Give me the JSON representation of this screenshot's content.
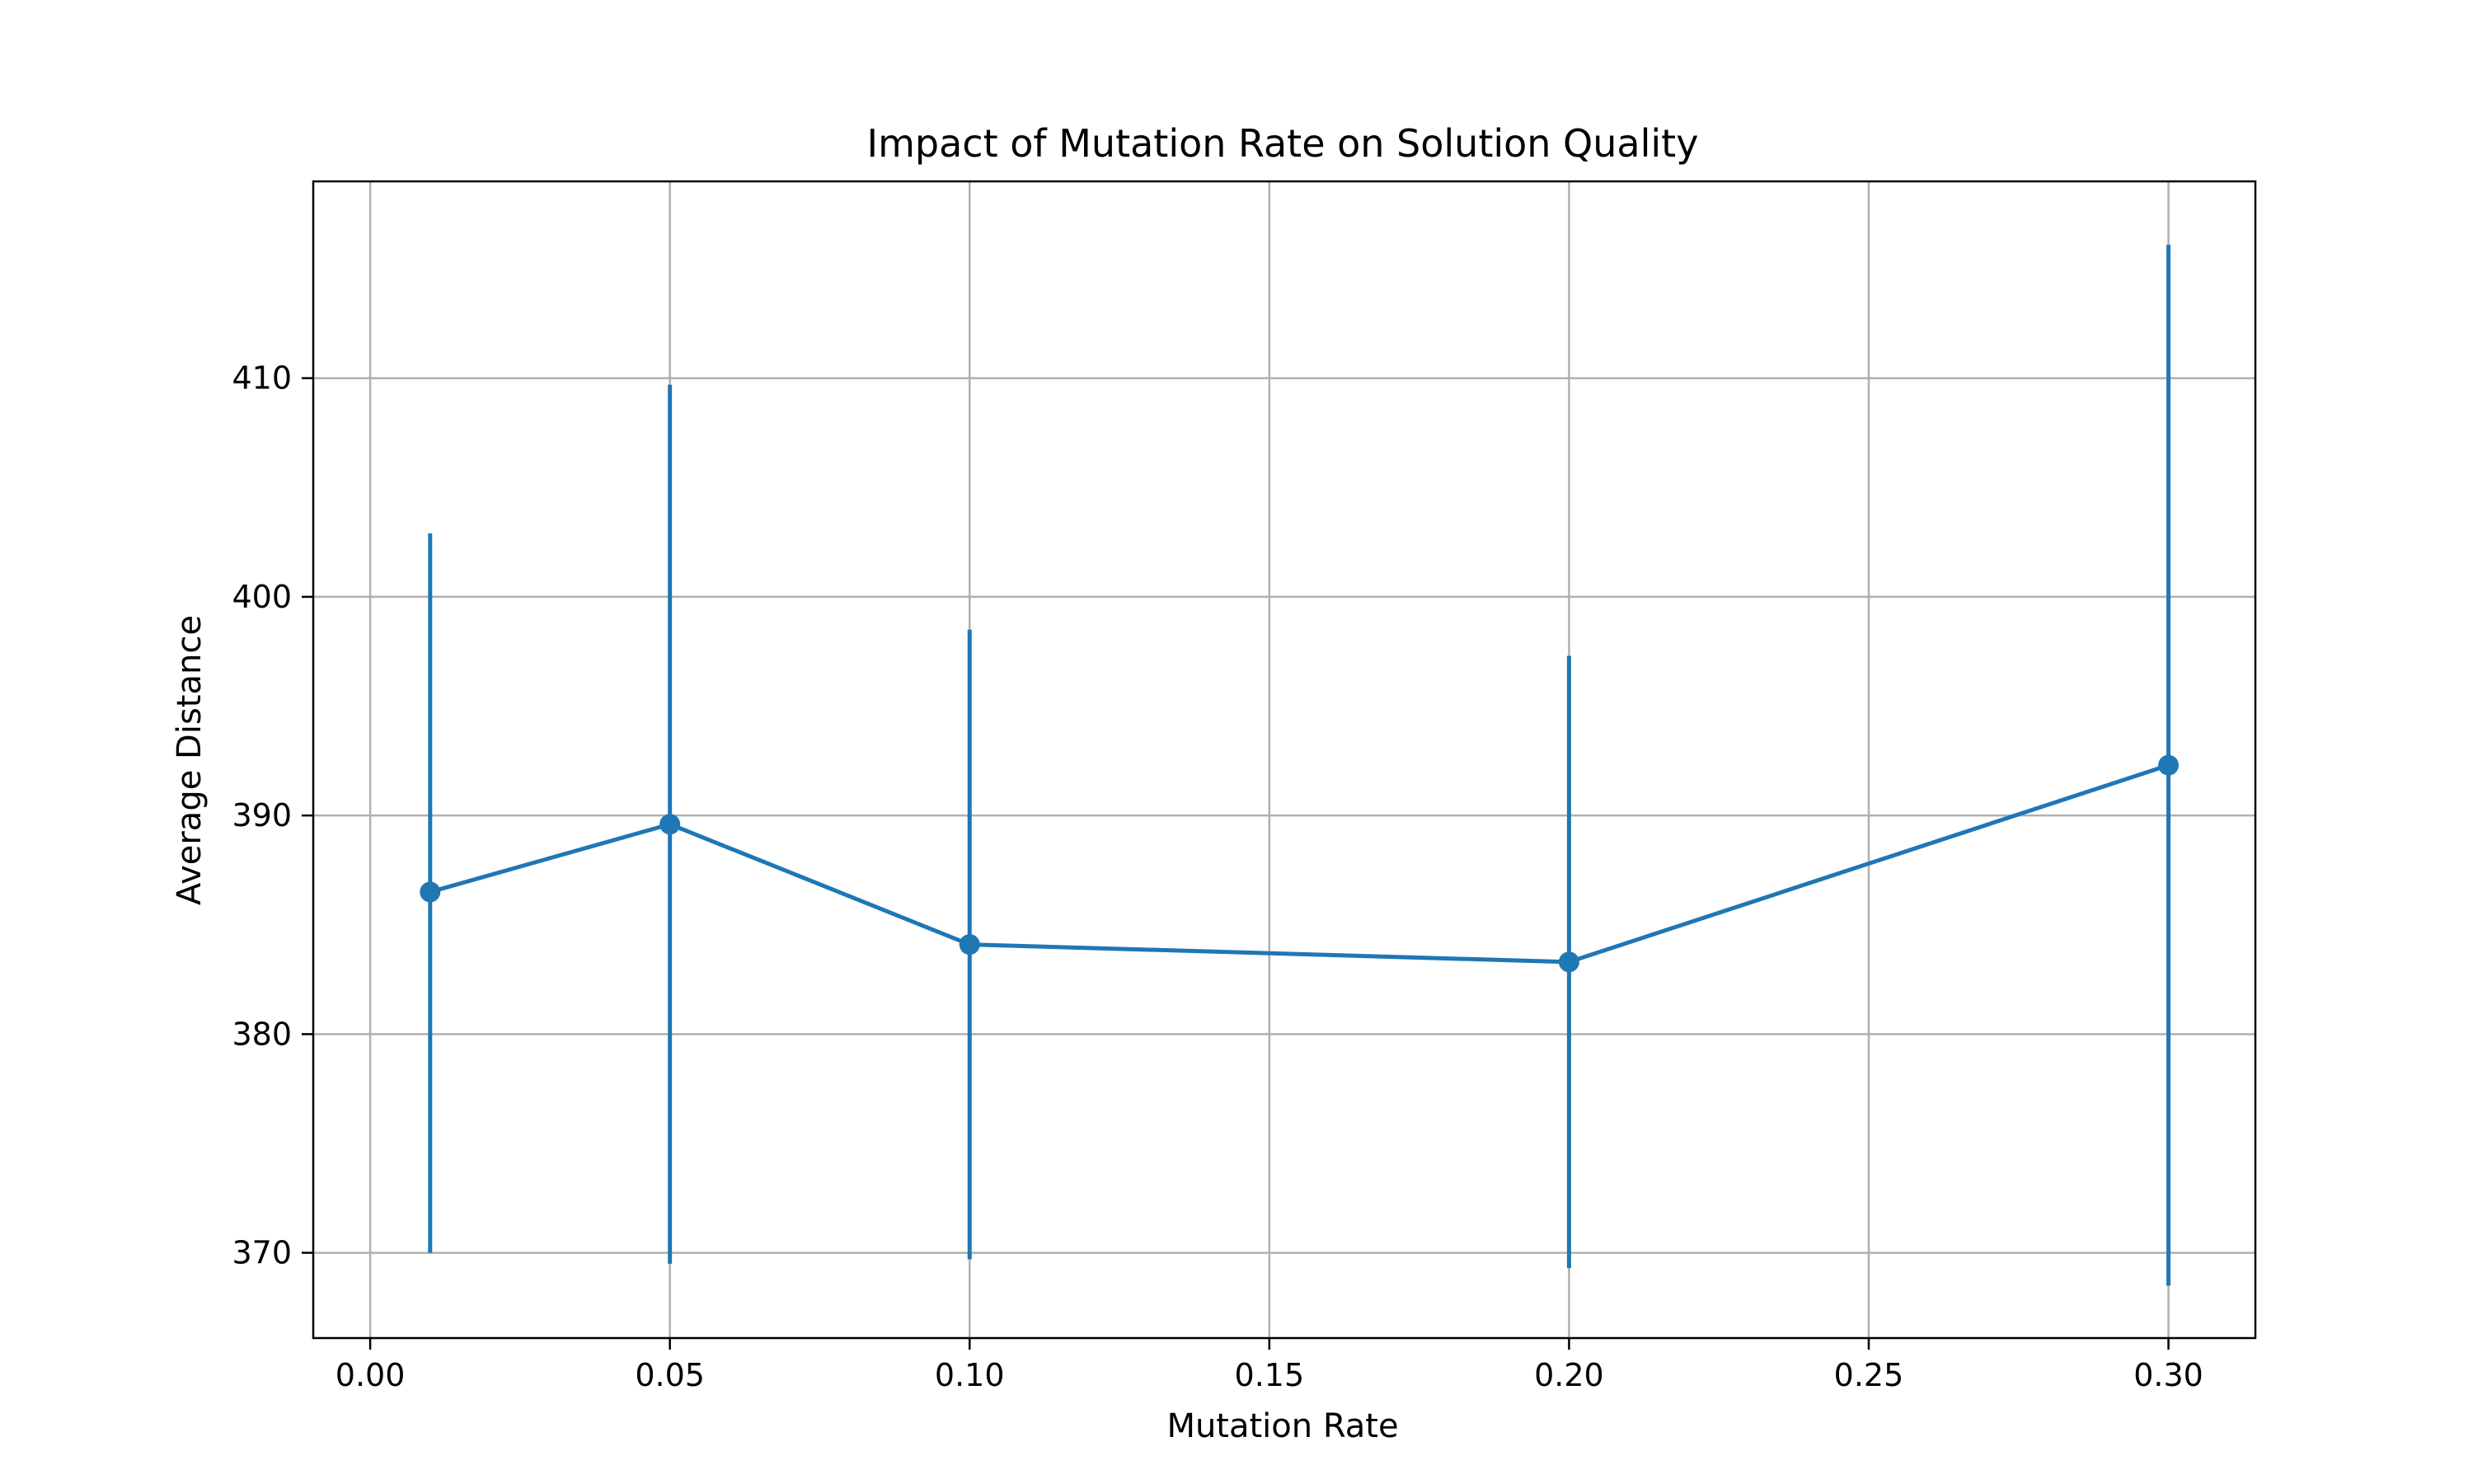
{
  "chart_data": {
    "type": "line",
    "title": "Impact of Mutation Rate on Solution Quality",
    "xlabel": "Mutation Rate",
    "ylabel": "Average Distance",
    "xlim": [
      -0.0095,
      0.3145
    ],
    "ylim": [
      366.1,
      419.0
    ],
    "xticks": [
      0.0,
      0.05,
      0.1,
      0.15,
      0.2,
      0.25,
      0.3
    ],
    "xtick_labels": [
      "0.00",
      "0.05",
      "0.10",
      "0.15",
      "0.20",
      "0.25",
      "0.30"
    ],
    "yticks": [
      370,
      380,
      390,
      400,
      410
    ],
    "ytick_labels": [
      "370",
      "380",
      "390",
      "400",
      "410"
    ],
    "grid": true,
    "color": "#1f77b4",
    "series": [
      {
        "x": [
          0.01,
          0.05,
          0.1,
          0.2,
          0.3
        ],
        "y": [
          386.5,
          389.6,
          384.1,
          383.3,
          392.3
        ],
        "error_low": [
          370.0,
          369.5,
          369.7,
          369.3,
          368.5
        ],
        "error_high": [
          402.9,
          409.7,
          398.5,
          397.3,
          416.1
        ]
      }
    ]
  }
}
